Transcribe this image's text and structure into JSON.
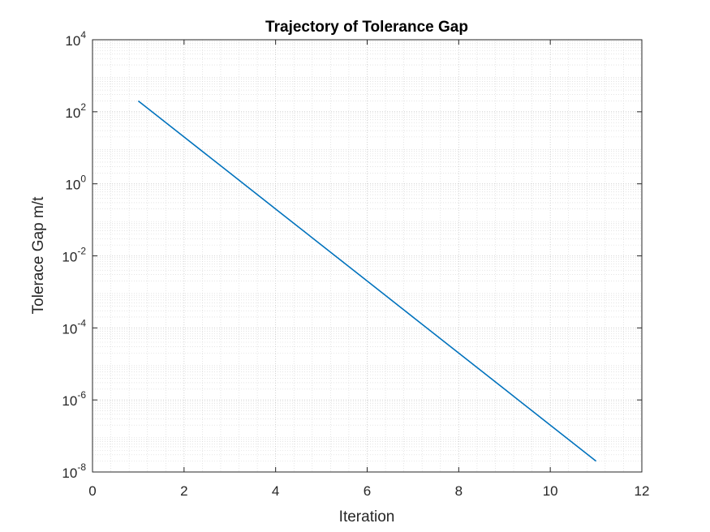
{
  "chart_data": {
    "type": "line",
    "title": "Trajectory of Tolerance Gap",
    "xlabel": "Iteration",
    "ylabel": "Tolerace Gap m/t",
    "xlim": [
      0,
      12
    ],
    "xticks": [
      0,
      2,
      4,
      6,
      8,
      10,
      12
    ],
    "ylim": [
      1e-08,
      10000.0
    ],
    "yscale": "log",
    "yticks": [
      {
        "base": "10",
        "exp": "-8",
        "value": 1e-08
      },
      {
        "base": "10",
        "exp": "-6",
        "value": 1e-06
      },
      {
        "base": "10",
        "exp": "-4",
        "value": 0.0001
      },
      {
        "base": "10",
        "exp": "-2",
        "value": 0.01
      },
      {
        "base": "10",
        "exp": "0",
        "value": 1
      },
      {
        "base": "10",
        "exp": "2",
        "value": 100
      },
      {
        "base": "10",
        "exp": "4",
        "value": 10000
      }
    ],
    "grid": true,
    "minor_grid": true,
    "series": [
      {
        "color": "#0072BD",
        "x": [
          1,
          2,
          3,
          4,
          5,
          6,
          7,
          8,
          9,
          10,
          11
        ],
        "y": [
          200,
          20,
          2,
          0.2,
          0.02,
          0.002,
          0.0002,
          2e-05,
          2e-06,
          2e-07,
          2e-08
        ]
      }
    ]
  }
}
